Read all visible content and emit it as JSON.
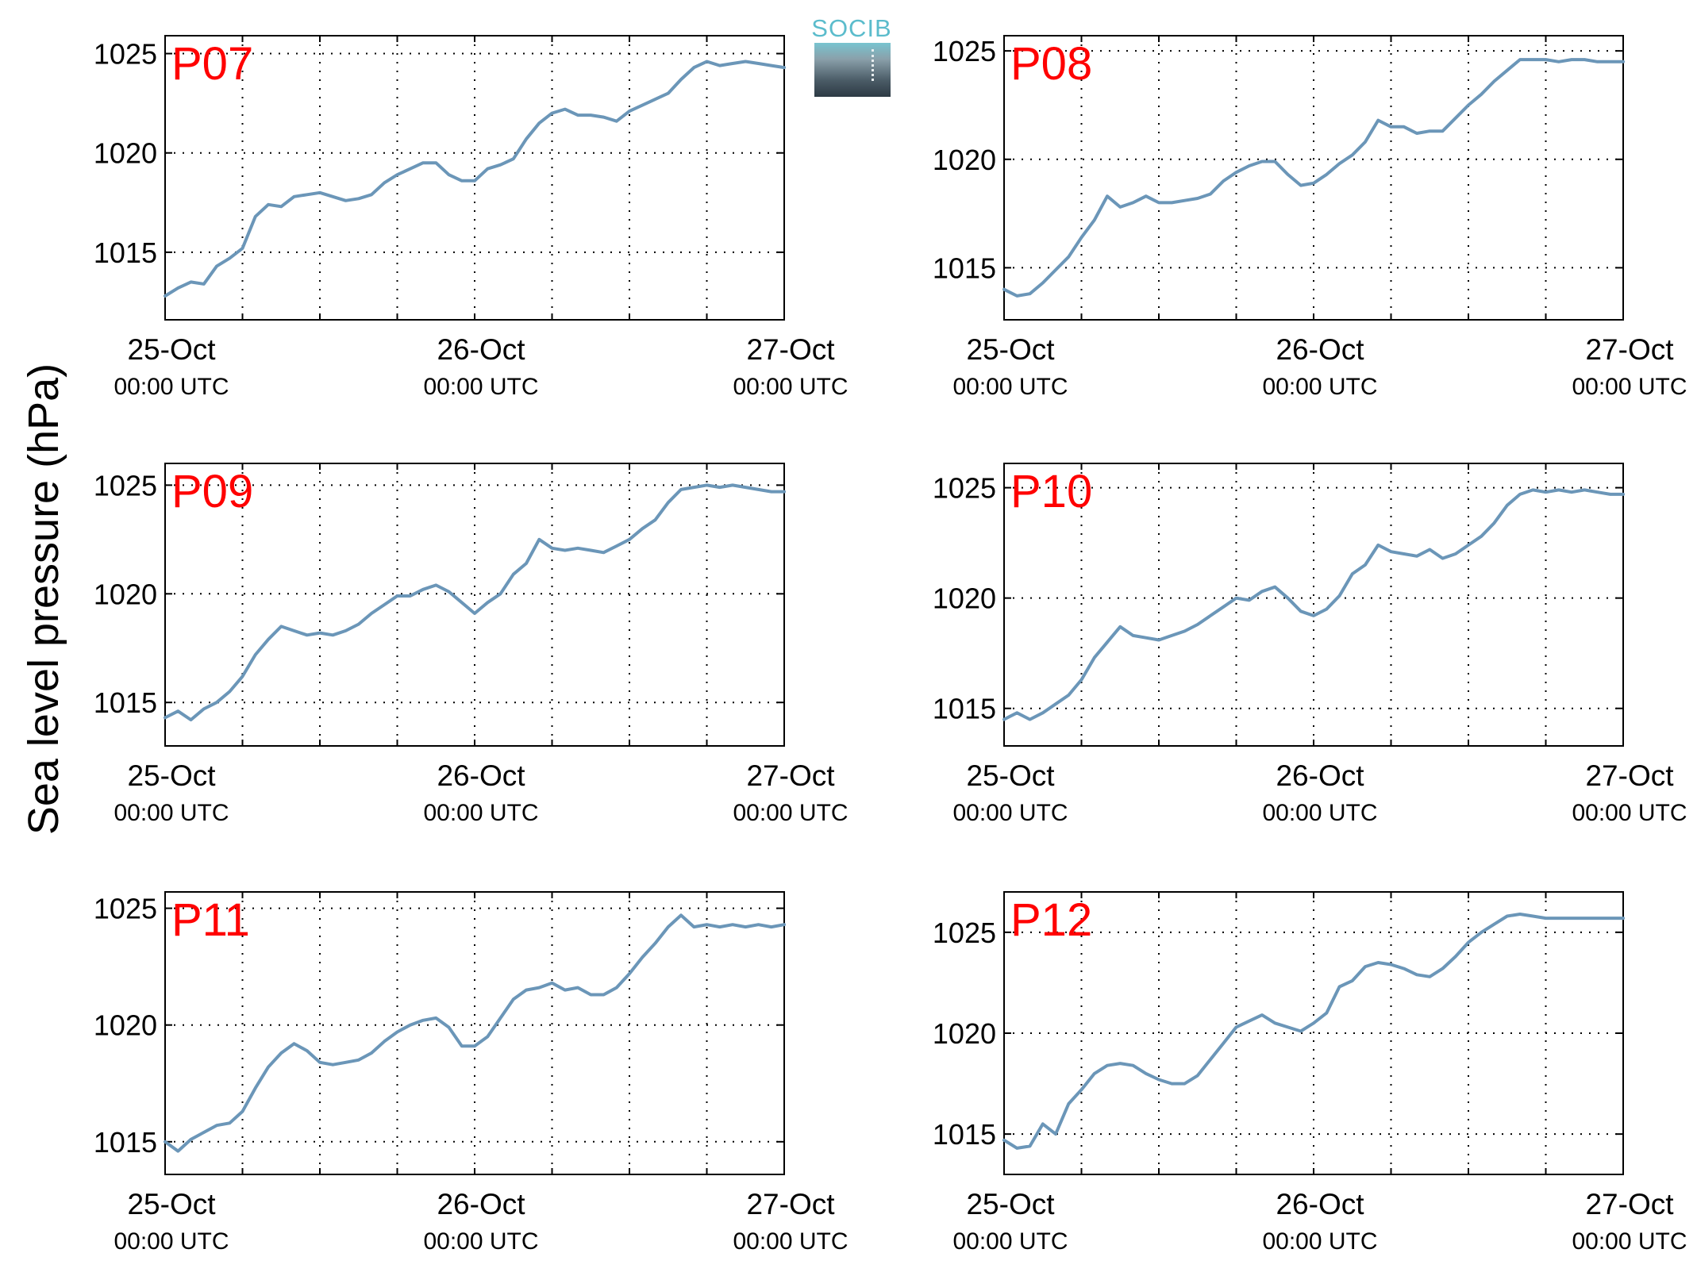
{
  "figure": {
    "ylabel": "Sea level pressure (hPa)",
    "logo_text": "SOCIB",
    "line_color": "#6b96b8",
    "panel_label_color": "#ff0000"
  },
  "chart_data": [
    {
      "type": "line",
      "title": "P07",
      "ylim": [
        1011.6,
        1025.9
      ],
      "yticks": [
        1015,
        1020,
        1025
      ],
      "xticks_hours": [
        0,
        24,
        48
      ],
      "xtick_labels": [
        [
          "25-Oct",
          "00:00 UTC"
        ],
        [
          "26-Oct",
          "00:00 UTC"
        ],
        [
          "27-Oct",
          "00:00 UTC"
        ]
      ],
      "x_range_hours": [
        0,
        48
      ],
      "grid": true,
      "series": [
        {
          "x": [
            0,
            1,
            2,
            3,
            4,
            5,
            6,
            7,
            8,
            9,
            10,
            11,
            12,
            13,
            14,
            15,
            16,
            17,
            18,
            19,
            20,
            21,
            22,
            23,
            24,
            25,
            26,
            27,
            28,
            29,
            30,
            31,
            32,
            33,
            34,
            35,
            36,
            37,
            38,
            39,
            40,
            41,
            42,
            43,
            44,
            45,
            46,
            47,
            48
          ],
          "y": [
            1012.8,
            1013.2,
            1013.5,
            1013.4,
            1014.3,
            1014.7,
            1015.2,
            1016.8,
            1017.4,
            1017.3,
            1017.8,
            1017.9,
            1018.0,
            1017.8,
            1017.6,
            1017.7,
            1017.9,
            1018.5,
            1018.9,
            1019.2,
            1019.5,
            1019.5,
            1018.9,
            1018.6,
            1018.6,
            1019.2,
            1019.4,
            1019.7,
            1020.7,
            1021.5,
            1022.0,
            1022.2,
            1021.9,
            1021.9,
            1021.8,
            1021.6,
            1022.1,
            1022.4,
            1022.7,
            1023.0,
            1023.7,
            1024.3,
            1024.6,
            1024.4,
            1024.5,
            1024.6,
            1024.5,
            1024.4,
            1024.3
          ]
        }
      ]
    },
    {
      "type": "line",
      "title": "P08",
      "ylim": [
        1012.6,
        1025.7
      ],
      "yticks": [
        1015,
        1020,
        1025
      ],
      "xticks_hours": [
        0,
        24,
        48
      ],
      "xtick_labels": [
        [
          "25-Oct",
          "00:00 UTC"
        ],
        [
          "26-Oct",
          "00:00 UTC"
        ],
        [
          "27-Oct",
          "00:00 UTC"
        ]
      ],
      "x_range_hours": [
        0,
        48
      ],
      "grid": true,
      "series": [
        {
          "x": [
            0,
            1,
            2,
            3,
            4,
            5,
            6,
            7,
            8,
            9,
            10,
            11,
            12,
            13,
            14,
            15,
            16,
            17,
            18,
            19,
            20,
            21,
            22,
            23,
            24,
            25,
            26,
            27,
            28,
            29,
            30,
            31,
            32,
            33,
            34,
            35,
            36,
            37,
            38,
            39,
            40,
            41,
            42,
            43,
            44,
            45,
            46,
            47,
            48
          ],
          "y": [
            1014.0,
            1013.7,
            1013.8,
            1014.3,
            1014.9,
            1015.5,
            1016.4,
            1017.2,
            1018.3,
            1017.8,
            1018.0,
            1018.3,
            1018.0,
            1018.0,
            1018.1,
            1018.2,
            1018.4,
            1019.0,
            1019.4,
            1019.7,
            1019.9,
            1019.9,
            1019.3,
            1018.8,
            1018.9,
            1019.3,
            1019.8,
            1020.2,
            1020.8,
            1021.8,
            1021.5,
            1021.5,
            1021.2,
            1021.3,
            1021.3,
            1021.9,
            1022.5,
            1023.0,
            1023.6,
            1024.1,
            1024.6,
            1024.6,
            1024.6,
            1024.5,
            1024.6,
            1024.6,
            1024.5,
            1024.5,
            1024.5
          ]
        }
      ]
    },
    {
      "type": "line",
      "title": "P09",
      "ylim": [
        1013.0,
        1026.0
      ],
      "yticks": [
        1015,
        1020,
        1025
      ],
      "xticks_hours": [
        0,
        24,
        48
      ],
      "xtick_labels": [
        [
          "25-Oct",
          "00:00 UTC"
        ],
        [
          "26-Oct",
          "00:00 UTC"
        ],
        [
          "27-Oct",
          "00:00 UTC"
        ]
      ],
      "x_range_hours": [
        0,
        48
      ],
      "grid": true,
      "series": [
        {
          "x": [
            0,
            1,
            2,
            3,
            4,
            5,
            6,
            7,
            8,
            9,
            10,
            11,
            12,
            13,
            14,
            15,
            16,
            17,
            18,
            19,
            20,
            21,
            22,
            23,
            24,
            25,
            26,
            27,
            28,
            29,
            30,
            31,
            32,
            33,
            34,
            35,
            36,
            37,
            38,
            39,
            40,
            41,
            42,
            43,
            44,
            45,
            46,
            47,
            48
          ],
          "y": [
            1014.3,
            1014.6,
            1014.2,
            1014.7,
            1015.0,
            1015.5,
            1016.2,
            1017.2,
            1017.9,
            1018.5,
            1018.3,
            1018.1,
            1018.2,
            1018.1,
            1018.3,
            1018.6,
            1019.1,
            1019.5,
            1019.9,
            1019.9,
            1020.2,
            1020.4,
            1020.1,
            1019.6,
            1019.1,
            1019.6,
            1020.0,
            1020.9,
            1021.4,
            1022.5,
            1022.1,
            1022.0,
            1022.1,
            1022.0,
            1021.9,
            1022.2,
            1022.5,
            1023.0,
            1023.4,
            1024.2,
            1024.8,
            1024.9,
            1025.0,
            1024.9,
            1025.0,
            1024.9,
            1024.8,
            1024.7,
            1024.7
          ]
        }
      ]
    },
    {
      "type": "line",
      "title": "P10",
      "ylim": [
        1013.3,
        1026.1
      ],
      "yticks": [
        1015,
        1020,
        1025
      ],
      "xticks_hours": [
        0,
        24,
        48
      ],
      "xtick_labels": [
        [
          "25-Oct",
          "00:00 UTC"
        ],
        [
          "26-Oct",
          "00:00 UTC"
        ],
        [
          "27-Oct",
          "00:00 UTC"
        ]
      ],
      "x_range_hours": [
        0,
        48
      ],
      "grid": true,
      "series": [
        {
          "x": [
            0,
            1,
            2,
            3,
            4,
            5,
            6,
            7,
            8,
            9,
            10,
            11,
            12,
            13,
            14,
            15,
            16,
            17,
            18,
            19,
            20,
            21,
            22,
            23,
            24,
            25,
            26,
            27,
            28,
            29,
            30,
            31,
            32,
            33,
            34,
            35,
            36,
            37,
            38,
            39,
            40,
            41,
            42,
            43,
            44,
            45,
            46,
            47,
            48
          ],
          "y": [
            1014.5,
            1014.8,
            1014.5,
            1014.8,
            1015.2,
            1015.6,
            1016.3,
            1017.3,
            1018.0,
            1018.7,
            1018.3,
            1018.2,
            1018.1,
            1018.3,
            1018.5,
            1018.8,
            1019.2,
            1019.6,
            1020.0,
            1019.9,
            1020.3,
            1020.5,
            1020.0,
            1019.4,
            1019.2,
            1019.5,
            1020.1,
            1021.1,
            1021.5,
            1022.4,
            1022.1,
            1022.0,
            1021.9,
            1022.2,
            1021.8,
            1022.0,
            1022.4,
            1022.8,
            1023.4,
            1024.2,
            1024.7,
            1024.9,
            1024.8,
            1024.9,
            1024.8,
            1024.9,
            1024.8,
            1024.7,
            1024.7
          ]
        }
      ]
    },
    {
      "type": "line",
      "title": "P11",
      "ylim": [
        1013.6,
        1025.7
      ],
      "yticks": [
        1015,
        1020,
        1025
      ],
      "xticks_hours": [
        0,
        24,
        48
      ],
      "xtick_labels": [
        [
          "25-Oct",
          "00:00 UTC"
        ],
        [
          "26-Oct",
          "00:00 UTC"
        ],
        [
          "27-Oct",
          "00:00 UTC"
        ]
      ],
      "x_range_hours": [
        0,
        48
      ],
      "grid": true,
      "series": [
        {
          "x": [
            0,
            1,
            2,
            3,
            4,
            5,
            6,
            7,
            8,
            9,
            10,
            11,
            12,
            13,
            14,
            15,
            16,
            17,
            18,
            19,
            20,
            21,
            22,
            23,
            24,
            25,
            26,
            27,
            28,
            29,
            30,
            31,
            32,
            33,
            34,
            35,
            36,
            37,
            38,
            39,
            40,
            41,
            42,
            43,
            44,
            45,
            46,
            47,
            48
          ],
          "y": [
            1015.0,
            1014.6,
            1015.1,
            1015.4,
            1015.7,
            1015.8,
            1016.3,
            1017.3,
            1018.2,
            1018.8,
            1019.2,
            1018.9,
            1018.4,
            1018.3,
            1018.4,
            1018.5,
            1018.8,
            1019.3,
            1019.7,
            1020.0,
            1020.2,
            1020.3,
            1019.9,
            1019.1,
            1019.1,
            1019.5,
            1020.3,
            1021.1,
            1021.5,
            1021.6,
            1021.8,
            1021.5,
            1021.6,
            1021.3,
            1021.3,
            1021.6,
            1022.2,
            1022.9,
            1023.5,
            1024.2,
            1024.7,
            1024.2,
            1024.3,
            1024.2,
            1024.3,
            1024.2,
            1024.3,
            1024.2,
            1024.3
          ]
        }
      ]
    },
    {
      "type": "line",
      "title": "P12",
      "ylim": [
        1013.0,
        1027.0
      ],
      "yticks": [
        1015,
        1020,
        1025
      ],
      "xticks_hours": [
        0,
        24,
        48
      ],
      "xtick_labels": [
        [
          "25-Oct",
          "00:00 UTC"
        ],
        [
          "26-Oct",
          "00:00 UTC"
        ],
        [
          "27-Oct",
          "00:00 UTC"
        ]
      ],
      "x_range_hours": [
        0,
        48
      ],
      "grid": true,
      "series": [
        {
          "x": [
            0,
            1,
            2,
            3,
            4,
            5,
            6,
            7,
            8,
            9,
            10,
            11,
            12,
            13,
            14,
            15,
            16,
            17,
            18,
            19,
            20,
            21,
            22,
            23,
            24,
            25,
            26,
            27,
            28,
            29,
            30,
            31,
            32,
            33,
            34,
            35,
            36,
            37,
            38,
            39,
            40,
            41,
            42,
            43,
            44,
            45,
            46,
            47,
            48
          ],
          "y": [
            1014.7,
            1014.3,
            1014.4,
            1015.5,
            1015.0,
            1016.5,
            1017.2,
            1018.0,
            1018.4,
            1018.5,
            1018.4,
            1018.0,
            1017.7,
            1017.5,
            1017.5,
            1017.9,
            1018.7,
            1019.5,
            1020.3,
            1020.6,
            1020.9,
            1020.5,
            1020.3,
            1020.1,
            1020.5,
            1021.0,
            1022.3,
            1022.6,
            1023.3,
            1023.5,
            1023.4,
            1023.2,
            1022.9,
            1022.8,
            1023.2,
            1023.8,
            1024.5,
            1025.0,
            1025.4,
            1025.8,
            1025.9,
            1025.8,
            1025.7,
            1025.7,
            1025.7,
            1025.7,
            1025.7,
            1025.7,
            1025.7
          ]
        }
      ]
    }
  ]
}
